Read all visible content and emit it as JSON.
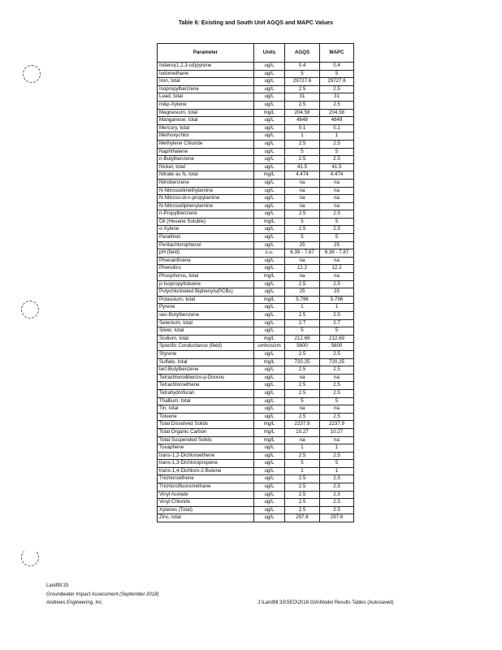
{
  "title": "Table 6: Existing and South Unit AGQS and MAPC Values",
  "table": {
    "headers": [
      "Parameter",
      "Units",
      "AGQS",
      "MAPC"
    ],
    "rows": [
      [
        "Indeno(1,2,3-cd)pyrene",
        "ug/L",
        "0.4",
        "0.4"
      ],
      [
        "Iodomethane",
        "ug/L",
        "5",
        "5"
      ],
      [
        "Iron, total",
        "ug/L",
        "29727.6",
        "29727.6"
      ],
      [
        "Isopropylbenzene",
        "ug/L",
        "2.5",
        "2.5"
      ],
      [
        "Lead, total",
        "ug/L",
        "31",
        "31"
      ],
      [
        "m&p-Xylene",
        "ug/L",
        "2.5",
        "2.5"
      ],
      [
        "Magnesium, total",
        "mg/L",
        "204.58",
        "204.58"
      ],
      [
        "Manganese, total",
        "ug/L",
        "4849",
        "4849"
      ],
      [
        "Mercury, total",
        "ug/L",
        "0.1",
        "0.1"
      ],
      [
        "Methoxychlor",
        "ug/L",
        "1",
        "1"
      ],
      [
        "Methylene Chloride",
        "ug/L",
        "2.5",
        "2.5"
      ],
      [
        "Naphthalene",
        "ug/L",
        "5",
        "5"
      ],
      [
        "n-Butylbenzene",
        "ug/L",
        "2.5",
        "2.5"
      ],
      [
        "Nickel, total",
        "ug/L",
        "41.5",
        "41.5"
      ],
      [
        "Nitrate as N, total",
        "mg/L",
        "4.474",
        "4.474"
      ],
      [
        "Nitrobenzene",
        "ug/L",
        "na",
        "na"
      ],
      [
        "N-Nitrosodimethylamine",
        "ug/L",
        "na",
        "na"
      ],
      [
        "N-Nitroso-di-n-propylamine",
        "ug/L",
        "na",
        "na"
      ],
      [
        "N-Nitrosodiphenylamine",
        "ug/L",
        "na",
        "na"
      ],
      [
        "n-Propylbenzene",
        "ug/L",
        "2.5",
        "2.5"
      ],
      [
        "Oil (Hexane Soluble)",
        "mg/L",
        "5",
        "5"
      ],
      [
        "o-Xylene",
        "ug/L",
        "2.5",
        "2.5"
      ],
      [
        "Parathion",
        "ug/L",
        "5",
        "5"
      ],
      [
        "Pentachlorophenol",
        "ug/L",
        "25",
        "25"
      ],
      [
        "pH (field)",
        "s.u.",
        "6.39 - 7.87",
        "6.39 - 7.87"
      ],
      [
        "Phenanthrene",
        "ug/L",
        "na",
        "na"
      ],
      [
        "Phenolics",
        "ug/L",
        "12.2",
        "12.2"
      ],
      [
        "Phosphorus, total",
        "mg/L",
        "na",
        "na"
      ],
      [
        "p-Isopropyltoluene",
        "ug/L",
        "2.5",
        "2.5"
      ],
      [
        "Polychlorinated Biphenyls(PCBs)",
        "ug/L",
        "25",
        "25"
      ],
      [
        "Potassium, total",
        "mg/L",
        "5.796",
        "5.796"
      ],
      [
        "Pyrene",
        "ug/L",
        "1",
        "1"
      ],
      [
        "sec-Butylbenzene",
        "ug/L",
        "2.5",
        "2.5"
      ],
      [
        "Selenium, total",
        "ug/L",
        "2.7",
        "2.7"
      ],
      [
        "Silver, total",
        "ug/L",
        "5",
        "5"
      ],
      [
        "Sodium, total",
        "mg/L",
        "212.69",
        "212.69"
      ],
      [
        "Specific Conductance (field)",
        "umhos/cm",
        "5600",
        "5600"
      ],
      [
        "Styrene",
        "ug/L",
        "2.5",
        "2.5"
      ],
      [
        "Sulfate, total",
        "mg/L",
        "720.25",
        "720.25"
      ],
      [
        "tert-Butylbenzene",
        "ug/L",
        "2.5",
        "2.5"
      ],
      [
        "Tetrachlorodibenzo-p-Dioxins",
        "ug/L",
        "na",
        "na"
      ],
      [
        "Tetrachloroethene",
        "ug/L",
        "2.5",
        "2.5"
      ],
      [
        "Tetrahydrofuran",
        "ug/L",
        "2.5",
        "2.5"
      ],
      [
        "Thallium, total",
        "ug/L",
        "5",
        "5"
      ],
      [
        "Tin, total",
        "ug/L",
        "na",
        "na"
      ],
      [
        "Toluene",
        "ug/L",
        "2.5",
        "2.5"
      ],
      [
        "Total Dissolved Solids",
        "mg/L",
        "2237.9",
        "2237.9"
      ],
      [
        "Total Organic Carbon",
        "mg/L",
        "10.27",
        "10.27"
      ],
      [
        "Total Suspended Solids",
        "mg/L",
        "na",
        "na"
      ],
      [
        "Toxaphene",
        "ug/L",
        "1",
        "1"
      ],
      [
        "trans-1,2-Dichloroethene",
        "ug/L",
        "2.5",
        "2.5"
      ],
      [
        "trans-1,3-Dichloropropene",
        "ug/L",
        "5",
        "5"
      ],
      [
        "trans-1,4-Dichloro-2-Butene",
        "ug/L",
        "1",
        "1"
      ],
      [
        "Trichloroethene",
        "ug/L",
        "2.5",
        "2.5"
      ],
      [
        "Trichlorofluoromethane",
        "ug/L",
        "2.5",
        "2.5"
      ],
      [
        "Vinyl Acetate",
        "ug/L",
        "2.5",
        "2.5"
      ],
      [
        "Vinyl Chloride",
        "ug/L",
        "2.5",
        "2.5"
      ],
      [
        "Xylenes (Total)",
        "ug/L",
        "2.5",
        "2.5"
      ],
      [
        "Zinc, total",
        "ug/L",
        "297.8",
        "297.8"
      ]
    ]
  },
  "footer": {
    "line1": "Landfill 33",
    "line2": "Groundwater Impact Assessment (September 2018)",
    "line3": "Andrews Engineering, Inc.",
    "path": "J:\\Landfill 33\\SEO\\2018 GIA\\Model Results Tables (Autosaved)"
  }
}
